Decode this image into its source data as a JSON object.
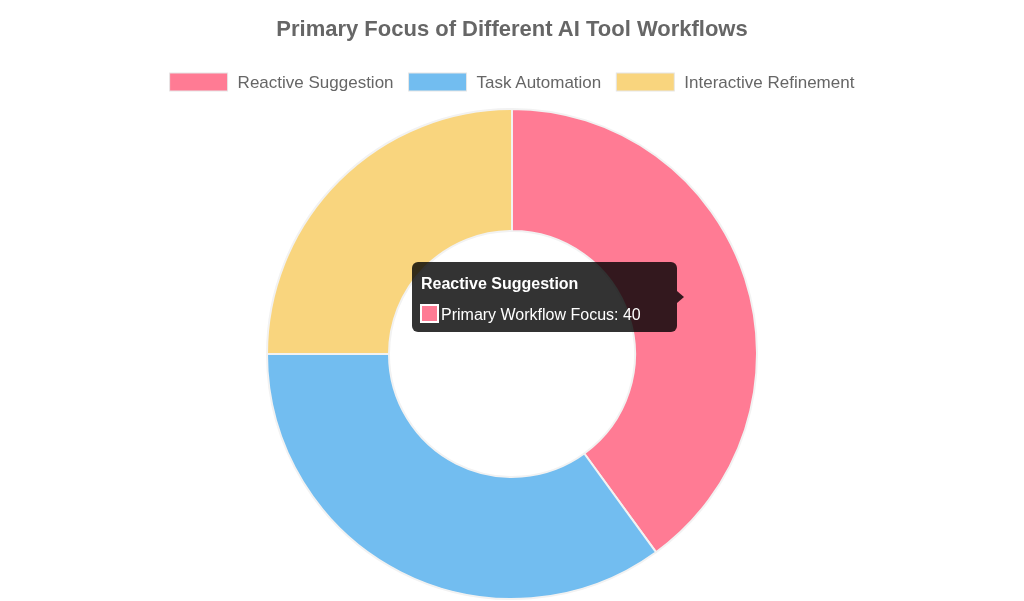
{
  "chart_data": {
    "type": "donut",
    "title": "Primary Focus of Different AI Tool Workflows",
    "categories": [
      "Reactive Suggestion",
      "Task Automation",
      "Interactive Refinement"
    ],
    "values": [
      40,
      35,
      25
    ],
    "colors": [
      "#ff7b94",
      "#72bdf0",
      "#f9d57e"
    ],
    "legend": "top",
    "annotations": [
      "Reactive Suggestion",
      "Primary Workflow Focus: 40"
    ]
  }
}
